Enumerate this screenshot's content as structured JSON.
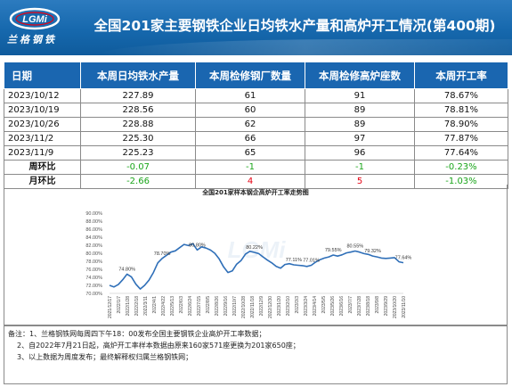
{
  "header": {
    "logo_text": "LGMi",
    "logo_cn": "兰格钢铁",
    "title": "全国201家主要钢铁企业日均铁水产量和高炉开工情况(第400期)"
  },
  "table": {
    "columns": [
      "日期",
      "本周日均铁水产量",
      "本周检修钢厂数量",
      "本周检修高炉座数",
      "本周开工率"
    ],
    "rows": [
      [
        "2023/10/12",
        "227.89",
        "61",
        "91",
        "78.67%"
      ],
      [
        "2023/10/19",
        "228.56",
        "60",
        "89",
        "78.81%"
      ],
      [
        "2023/10/26",
        "228.88",
        "62",
        "89",
        "78.90%"
      ],
      [
        "2023/11/2",
        "225.30",
        "66",
        "97",
        "77.87%"
      ],
      [
        "2023/11/9",
        "225.23",
        "65",
        "96",
        "77.64%"
      ]
    ],
    "wow": {
      "label": "周环比",
      "values": [
        "-0.07",
        "-1",
        "-1",
        "-0.23%"
      ]
    },
    "mom": {
      "label": "月环比",
      "values": [
        "-2.66",
        "4",
        "5",
        "-1.03%"
      ]
    }
  },
  "colors": {
    "positive": "#e60012",
    "negative": "#1aa51a",
    "header_blue": "#1a66b0",
    "line": "#2f6fb8"
  },
  "chart_data": {
    "type": "line",
    "title": "全国201家样本钢企高炉开工率走势图",
    "ylim": [
      70,
      90
    ],
    "yticks": [
      "70.00%",
      "72.00%",
      "74.00%",
      "76.00%",
      "78.00%",
      "80.00%",
      "82.00%",
      "84.00%",
      "86.00%",
      "88.00%",
      "90.00%"
    ],
    "xtick_labels": [
      "2021/12/17",
      "2022/1/7",
      "2022/1/28",
      "2022/2/18",
      "2022/3/11",
      "2022/4/1",
      "2022/4/22",
      "2022/5/13",
      "2022/6/3",
      "2022/6/24",
      "2022/7/15",
      "2022/8/5",
      "2022/8/26",
      "2022/9/16",
      "2022/10/7",
      "2022/10/28",
      "2022/11/18",
      "2022/12/9",
      "2022/12/30",
      "2023/1/20",
      "2023/2/10",
      "2023/3/3",
      "2023/3/24",
      "2023/4/14",
      "2023/5/5",
      "2023/5/26",
      "2023/6/16",
      "2023/7/7",
      "2023/7/28",
      "2023/8/18",
      "2023/9/8",
      "2023/9/29",
      "2023/10/20",
      "2023/11/10"
    ],
    "annotations": [
      "74.80%",
      "78.70%",
      "80.80%",
      "80.22%",
      "77.11%",
      "77.01%",
      "79.55%",
      "80.55%",
      "79.32%",
      "77.64%"
    ],
    "series": [
      {
        "values": [
          72.0,
          71.6,
          72.2,
          73.4,
          74.8,
          74.1,
          72.3,
          71.1,
          72.0,
          73.3,
          75.2,
          77.6,
          78.7,
          79.5,
          80.3,
          80.6,
          81.4,
          82.2,
          81.9,
          82.4,
          80.8,
          81.6,
          81.3,
          80.8,
          80.0,
          78.6,
          76.6,
          75.2,
          75.6,
          77.3,
          78.2,
          79.8,
          80.5,
          80.22,
          79.9,
          79.1,
          78.3,
          77.6,
          76.7,
          76.3,
          77.2,
          77.4,
          77.11,
          77.0,
          76.9,
          76.7,
          77.01,
          77.8,
          78.4,
          78.8,
          79.1,
          79.55,
          79.3,
          79.6,
          80.1,
          80.3,
          80.55,
          80.3,
          79.9,
          79.7,
          79.32,
          79.1,
          78.8,
          78.7,
          78.8,
          78.9,
          77.87,
          77.64
        ]
      }
    ]
  },
  "notes": [
    "备注：1、兰格钢铁网每周四下午18：00发布全国主要钢铁企业高炉开工率数据；",
    "2、自2022年7月21日起，高炉开工率样本数据由原来160家571座更换为201家650座；",
    "3、以上数据为周度发布；最终解释权归属兰格钢铁网；"
  ]
}
